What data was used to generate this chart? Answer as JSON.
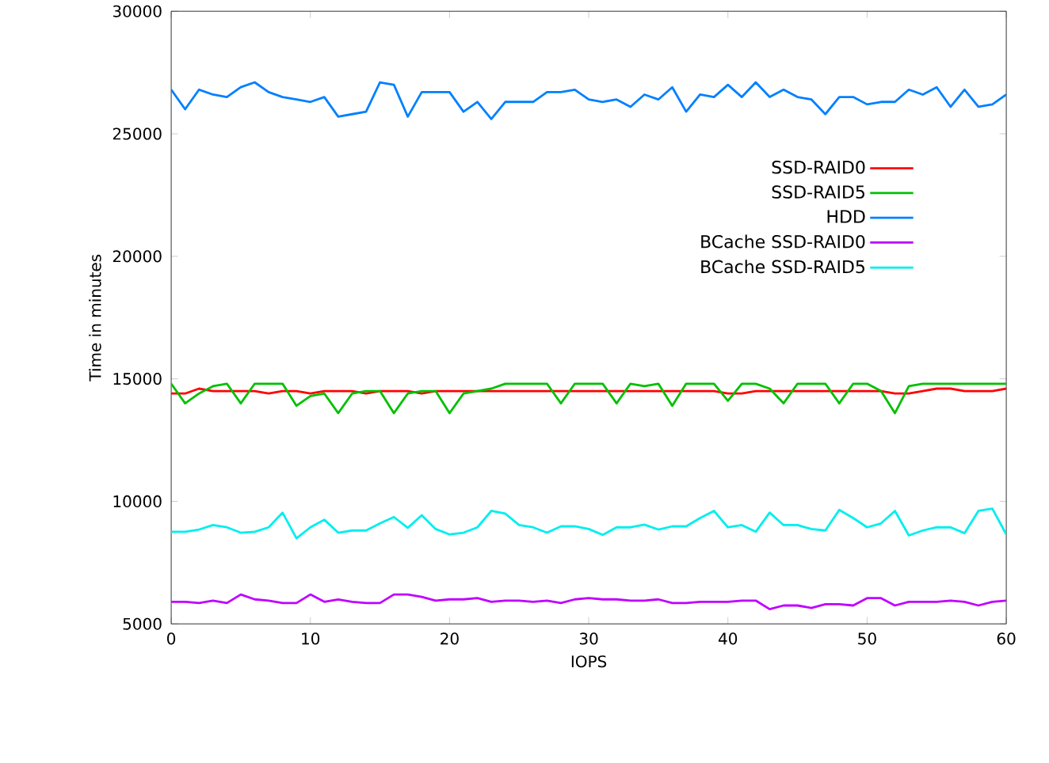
{
  "chart_data": {
    "type": "line",
    "xlabel": "IOPS",
    "ylabel": "Time in minutes",
    "x": [
      0,
      1,
      2,
      3,
      4,
      5,
      6,
      7,
      8,
      9,
      10,
      11,
      12,
      13,
      14,
      15,
      16,
      17,
      18,
      19,
      20,
      21,
      22,
      23,
      24,
      25,
      26,
      27,
      28,
      29,
      30,
      31,
      32,
      33,
      34,
      35,
      36,
      37,
      38,
      39,
      40,
      41,
      42,
      43,
      44,
      45,
      46,
      47,
      48,
      49,
      50,
      51,
      52,
      53,
      54,
      55,
      56,
      57,
      58,
      59,
      60
    ],
    "series": [
      {
        "name": "SSD-RAID0",
        "color": "#ff0000",
        "values": [
          14400,
          14400,
          14600,
          14500,
          14500,
          14500,
          14500,
          14400,
          14500,
          14500,
          14400,
          14500,
          14500,
          14500,
          14400,
          14500,
          14500,
          14500,
          14400,
          14500,
          14500,
          14500,
          14500,
          14500,
          14500,
          14500,
          14500,
          14500,
          14500,
          14500,
          14500,
          14500,
          14500,
          14500,
          14500,
          14500,
          14500,
          14500,
          14500,
          14500,
          14400,
          14400,
          14500,
          14500,
          14500,
          14500,
          14500,
          14500,
          14500,
          14500,
          14500,
          14500,
          14400,
          14400,
          14500,
          14600,
          14600,
          14500,
          14500,
          14500,
          14600
        ]
      },
      {
        "name": "SSD-RAID5",
        "color": "#00c000",
        "values": [
          14800,
          14000,
          14400,
          14700,
          14800,
          14000,
          14800,
          14800,
          14800,
          13900,
          14300,
          14400,
          13600,
          14400,
          14500,
          14500,
          13600,
          14400,
          14500,
          14500,
          13600,
          14400,
          14500,
          14600,
          14800,
          14800,
          14800,
          14800,
          14000,
          14800,
          14800,
          14800,
          14000,
          14800,
          14700,
          14800,
          13900,
          14800,
          14800,
          14800,
          14100,
          14800,
          14800,
          14600,
          14000,
          14800,
          14800,
          14800,
          14000,
          14800,
          14800,
          14500,
          13600,
          14700,
          14800,
          14800,
          14800,
          14800,
          14800,
          14800,
          14800
        ]
      },
      {
        "name": "HDD",
        "color": "#0080ff",
        "values": [
          26800,
          26000,
          26800,
          26600,
          26500,
          26900,
          27100,
          26700,
          26500,
          26400,
          26300,
          26500,
          25700,
          25800,
          25900,
          27100,
          27000,
          25700,
          26700,
          26700,
          26700,
          25900,
          26300,
          25600,
          26300,
          26300,
          26300,
          26700,
          26700,
          26800,
          26400,
          26300,
          26400,
          26100,
          26600,
          26400,
          26900,
          25900,
          26600,
          26500,
          27000,
          26500,
          27100,
          26500,
          26800,
          26500,
          26400,
          25800,
          26500,
          26500,
          26200,
          26300,
          26300,
          26800,
          26600,
          26900,
          26100,
          26800,
          26100,
          26200,
          26600
        ]
      },
      {
        "name": "BCache SSD-RAID0",
        "color": "#c000ff",
        "values": [
          5900,
          5900,
          5850,
          5950,
          5850,
          6200,
          6000,
          5950,
          5850,
          5850,
          6200,
          5900,
          6000,
          5900,
          5850,
          5850,
          6200,
          6200,
          6100,
          5950,
          6000,
          6000,
          6050,
          5900,
          5950,
          5950,
          5900,
          5950,
          5850,
          6000,
          6050,
          6000,
          6000,
          5950,
          5950,
          6000,
          5850,
          5850,
          5900,
          5900,
          5900,
          5950,
          5950,
          5600,
          5750,
          5750,
          5650,
          5800,
          5800,
          5750,
          6050,
          6050,
          5750,
          5900,
          5900,
          5900,
          5950,
          5900,
          5750,
          5900,
          5950
        ]
      },
      {
        "name": "BCache SSD-RAID5",
        "color": "#00eeee",
        "values": [
          8760,
          8760,
          8850,
          9030,
          8940,
          8720,
          8760,
          8940,
          9540,
          8490,
          8940,
          9250,
          8720,
          8810,
          8810,
          9100,
          9360,
          8920,
          9430,
          8870,
          8650,
          8720,
          8940,
          9610,
          9500,
          9030,
          8940,
          8720,
          8980,
          8980,
          8870,
          8630,
          8940,
          8940,
          9050,
          8850,
          8980,
          8980,
          9320,
          9610,
          8940,
          9030,
          8760,
          9540,
          9030,
          9030,
          8870,
          8810,
          9650,
          9320,
          8940,
          9100,
          9610,
          8610,
          8810,
          8940,
          8940,
          8700,
          9610,
          9700,
          8650
        ]
      }
    ],
    "xlim": [
      0,
      60
    ],
    "ylim": [
      5000,
      30000
    ],
    "xticks": [
      0,
      10,
      20,
      30,
      40,
      50,
      60
    ],
    "yticks": [
      5000,
      10000,
      15000,
      20000,
      25000,
      30000
    ],
    "legend": "top right",
    "grid": false
  }
}
